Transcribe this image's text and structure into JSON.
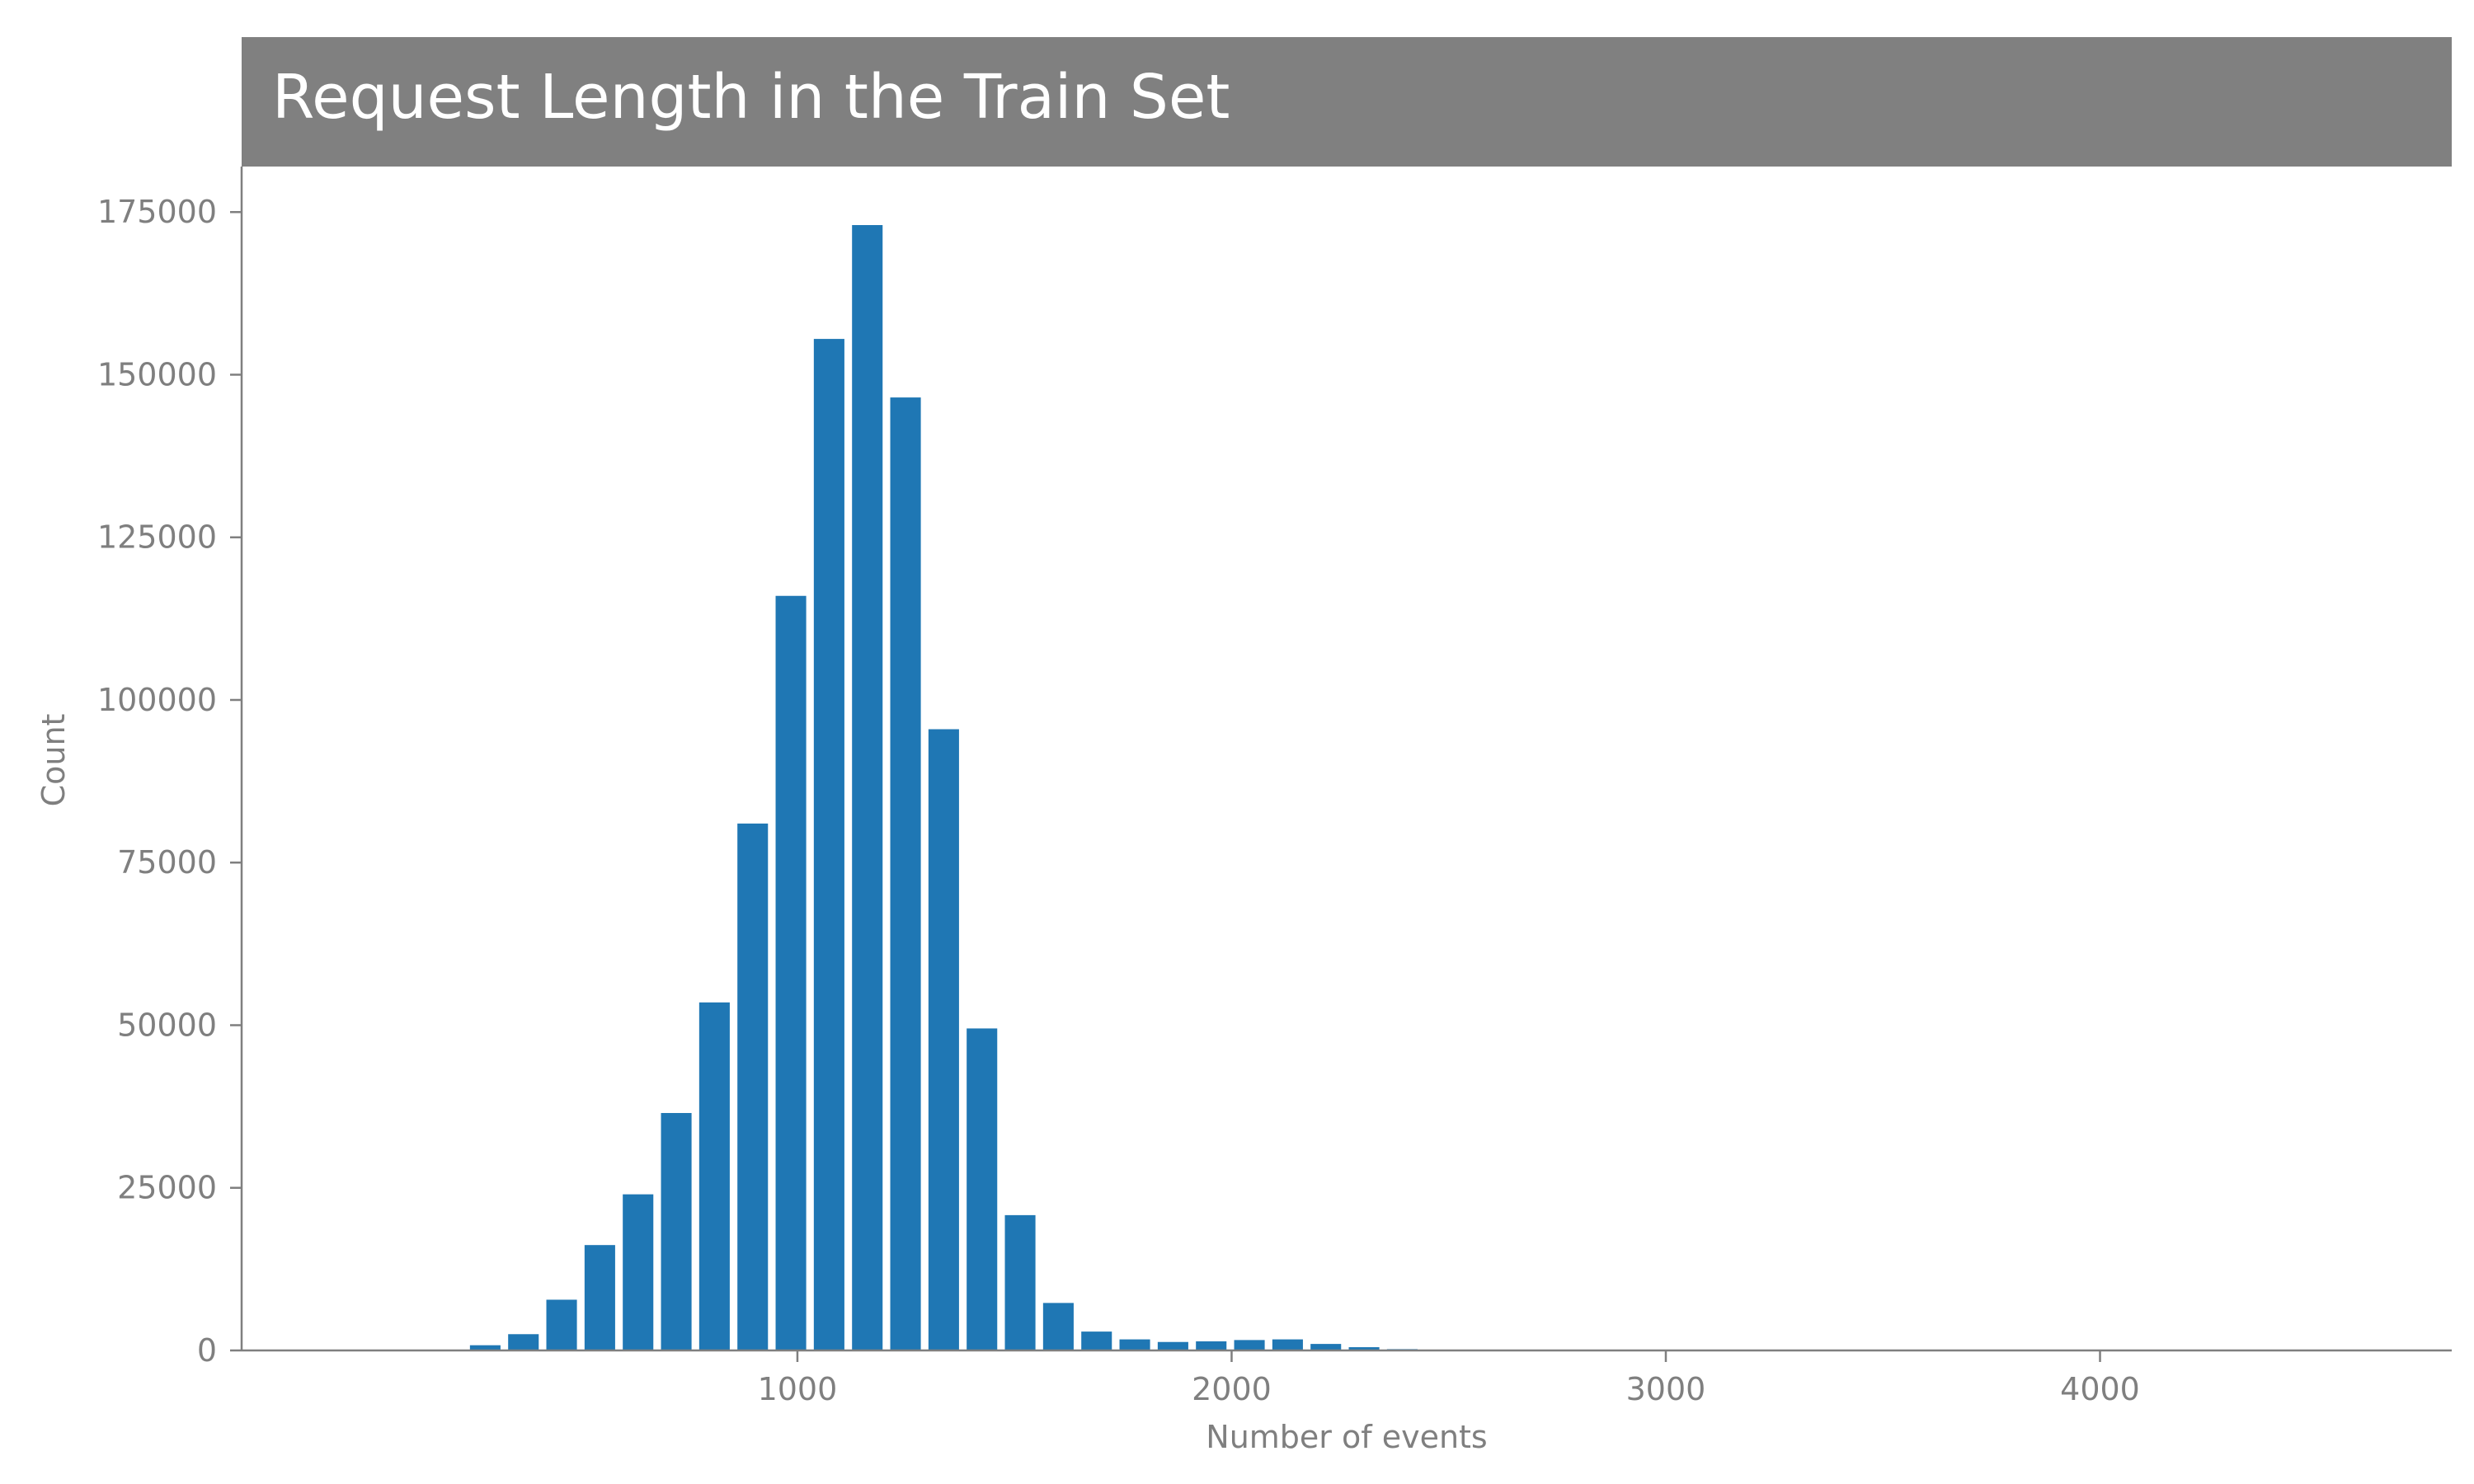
{
  "chart_data": {
    "type": "bar",
    "title": "Request Length in the Train Set",
    "xlabel": "Number of events",
    "ylabel": "Count",
    "xlim": [
      -280,
      4810
    ],
    "ylim": [
      0,
      182000
    ],
    "xticks": [
      1000,
      2000,
      3000,
      4000
    ],
    "yticks": [
      0,
      25000,
      50000,
      75000,
      100000,
      125000,
      150000,
      175000
    ],
    "bin_width": 88,
    "bar_fraction": 0.8,
    "bins": [
      {
        "x": 281,
        "count": 800
      },
      {
        "x": 369,
        "count": 2500
      },
      {
        "x": 457,
        "count": 7800
      },
      {
        "x": 545,
        "count": 16200
      },
      {
        "x": 633,
        "count": 24000
      },
      {
        "x": 721,
        "count": 36500
      },
      {
        "x": 809,
        "count": 53500
      },
      {
        "x": 897,
        "count": 81000
      },
      {
        "x": 985,
        "count": 116000
      },
      {
        "x": 1073,
        "count": 155500
      },
      {
        "x": 1161,
        "count": 173000
      },
      {
        "x": 1249,
        "count": 146500
      },
      {
        "x": 1337,
        "count": 95500
      },
      {
        "x": 1425,
        "count": 49500
      },
      {
        "x": 1513,
        "count": 20800
      },
      {
        "x": 1601,
        "count": 7300
      },
      {
        "x": 1689,
        "count": 2900
      },
      {
        "x": 1777,
        "count": 1700
      },
      {
        "x": 1865,
        "count": 1300
      },
      {
        "x": 1953,
        "count": 1400
      },
      {
        "x": 2041,
        "count": 1600
      },
      {
        "x": 2129,
        "count": 1700
      },
      {
        "x": 2217,
        "count": 1000
      },
      {
        "x": 2305,
        "count": 500
      },
      {
        "x": 2393,
        "count": 200
      }
    ],
    "grid": false,
    "colors": {
      "bar": "#1f77b4",
      "title_band": "#808080",
      "title_text": "#ffffff",
      "axis": "#7f7f7f",
      "tick_text": "#7f7f7f"
    }
  }
}
